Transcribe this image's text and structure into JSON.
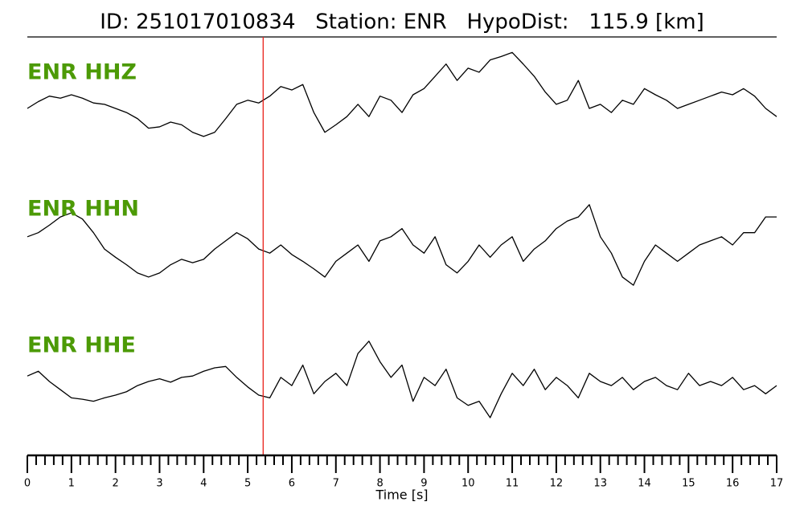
{
  "chart_data": {
    "type": "line",
    "title": "ID: 251017010834   Station: ENR   HypoDist:   115.9 [km]",
    "x_label": "Time [s]",
    "xlim": [
      0,
      17
    ],
    "xticks": [
      0,
      1,
      2,
      3,
      4,
      5,
      6,
      7,
      8,
      9,
      10,
      11,
      12,
      13,
      14,
      15,
      16,
      17
    ],
    "minor_tick_step": 0.2,
    "pick_time": 5.35,
    "pick_color": "#e8201a",
    "label_color": "#4c9a06",
    "x": [
      0,
      0.25,
      0.5,
      0.75,
      1,
      1.25,
      1.5,
      1.75,
      2,
      2.25,
      2.5,
      2.75,
      3,
      3.25,
      3.5,
      3.75,
      4,
      4.25,
      4.5,
      4.75,
      5,
      5.25,
      5.5,
      5.75,
      6,
      6.25,
      6.5,
      6.75,
      7,
      7.25,
      7.5,
      7.75,
      8,
      8.25,
      8.5,
      8.75,
      9,
      9.25,
      9.5,
      9.75,
      10,
      10.25,
      10.5,
      10.75,
      11,
      11.25,
      11.5,
      11.75,
      12,
      12.25,
      12.5,
      12.75,
      13,
      13.25,
      13.5,
      13.75,
      14,
      14.25,
      14.5,
      14.75,
      15,
      15.25,
      15.5,
      15.75,
      16,
      16.25,
      16.5,
      16.75,
      17
    ],
    "series": [
      {
        "name": "ENR HHZ",
        "color": "#000000",
        "ylim": [
          -1,
          1
        ],
        "values": [
          0,
          0.1,
          0.18,
          0.15,
          0.2,
          0.15,
          0.08,
          0.06,
          0,
          -0.06,
          -0.15,
          -0.29,
          -0.27,
          -0.2,
          -0.24,
          -0.35,
          -0.41,
          -0.35,
          -0.15,
          0.06,
          0.12,
          0.08,
          0.18,
          0.32,
          0.27,
          0.35,
          -0.06,
          -0.35,
          -0.24,
          -0.12,
          0.06,
          -0.12,
          0.18,
          0.12,
          -0.06,
          0.2,
          0.29,
          0.47,
          0.65,
          0.41,
          0.59,
          0.53,
          0.71,
          0.76,
          0.82,
          0.65,
          0.47,
          0.24,
          0.06,
          0.12,
          0.41,
          0,
          0.06,
          -0.06,
          0.12,
          0.06,
          0.29,
          0.2,
          0.12,
          0,
          0.06,
          0.12,
          0.18,
          0.24,
          0.2,
          0.29,
          0.18,
          0,
          -0.12
        ]
      },
      {
        "name": "ENR HHN",
        "color": "#000000",
        "ylim": [
          -1,
          1
        ],
        "values": [
          0.12,
          0.18,
          0.29,
          0.41,
          0.47,
          0.38,
          0.18,
          -0.06,
          -0.18,
          -0.29,
          -0.41,
          -0.47,
          -0.41,
          -0.29,
          -0.21,
          -0.26,
          -0.21,
          -0.06,
          0.06,
          0.18,
          0.09,
          -0.06,
          -0.12,
          0,
          -0.14,
          -0.24,
          -0.35,
          -0.47,
          -0.24,
          -0.12,
          0,
          -0.24,
          0.06,
          0.12,
          0.24,
          0,
          -0.12,
          0.12,
          -0.29,
          -0.41,
          -0.24,
          0,
          -0.18,
          0,
          0.12,
          -0.24,
          -0.06,
          0.06,
          0.24,
          0.35,
          0.41,
          0.59,
          0.12,
          -0.12,
          -0.47,
          -0.59,
          -0.24,
          0,
          -0.12,
          -0.24,
          -0.12,
          0,
          0.06,
          0.12,
          0,
          0.18,
          0.18,
          0.41,
          0.41
        ]
      },
      {
        "name": "ENR HHE",
        "color": "#000000",
        "ylim": [
          -1,
          1
        ],
        "values": [
          0.08,
          0.15,
          0,
          -0.12,
          -0.24,
          -0.26,
          -0.29,
          -0.24,
          -0.2,
          -0.15,
          -0.06,
          0,
          0.04,
          -0.01,
          0.06,
          0.08,
          0.15,
          0.2,
          0.22,
          0.06,
          -0.08,
          -0.2,
          -0.24,
          0.06,
          -0.06,
          0.24,
          -0.18,
          0,
          0.12,
          -0.06,
          0.41,
          0.59,
          0.29,
          0.06,
          0.24,
          -0.29,
          0.06,
          -0.06,
          0.18,
          -0.24,
          -0.35,
          -0.29,
          -0.53,
          -0.18,
          0.12,
          -0.06,
          0.18,
          -0.12,
          0.06,
          -0.06,
          -0.24,
          0.12,
          0,
          -0.06,
          0.06,
          -0.12,
          0,
          0.06,
          -0.06,
          -0.12,
          0.12,
          -0.06,
          0,
          -0.06,
          0.06,
          -0.12,
          -0.06,
          -0.18,
          -0.06
        ]
      }
    ]
  }
}
